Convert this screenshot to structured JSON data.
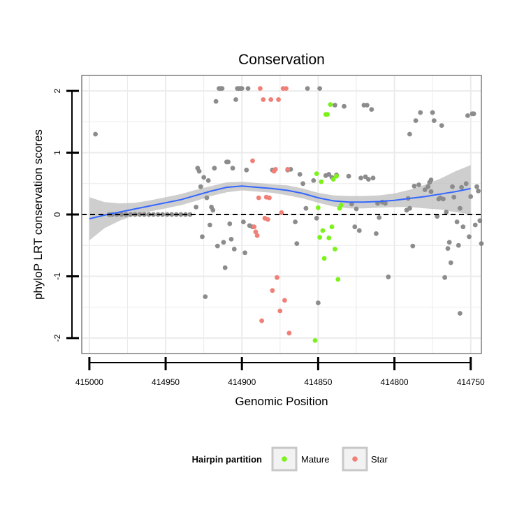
{
  "chart_data": {
    "type": "scatter",
    "title": "Conservation",
    "xlabel": "Genomic Position",
    "ylabel": "phyloP LRT conservation scores",
    "x_reversed": true,
    "xlim": [
      415005,
      414743
    ],
    "ylim": [
      -2.25,
      2.25
    ],
    "x_ticks": [
      415000,
      414950,
      414900,
      414850,
      414800,
      414750
    ],
    "x_tick_labels": [
      "415000",
      "414950",
      "414900",
      "414850",
      "414800",
      "414750"
    ],
    "y_ticks": [
      -2,
      -1,
      0,
      1,
      2
    ],
    "y_tick_labels": [
      "-2",
      "-1",
      "0",
      "1",
      "2"
    ],
    "reference_line": {
      "y": 0,
      "style": "dashed",
      "color": "#000000"
    },
    "legend": {
      "title": "Hairpin partition",
      "position": "bottom",
      "entries": [
        {
          "label": "Mature",
          "color": "#7CF21B"
        },
        {
          "label": "Star",
          "color": "#F08077"
        }
      ]
    },
    "colors": {
      "other": "#8C8C8C",
      "mature": "#7CF21B",
      "star": "#F08077",
      "smooth_line": "#3366FF",
      "confidence_band": "#BDBDBD",
      "panel_border": "#7F7F7F",
      "grid": "#EBEBEB"
    },
    "smooth": {
      "method": "loess",
      "x": [
        415000,
        414990,
        414980,
        414970,
        414960,
        414950,
        414940,
        414930,
        414920,
        414910,
        414900,
        414890,
        414880,
        414870,
        414860,
        414850,
        414840,
        414830,
        414820,
        414810,
        414800,
        414790,
        414780,
        414770,
        414760,
        414750
      ],
      "y": [
        -0.07,
        -0.01,
        0.04,
        0.09,
        0.14,
        0.19,
        0.24,
        0.31,
        0.38,
        0.44,
        0.46,
        0.44,
        0.42,
        0.39,
        0.34,
        0.27,
        0.22,
        0.2,
        0.2,
        0.21,
        0.23,
        0.26,
        0.29,
        0.33,
        0.37,
        0.42
      ],
      "lower": [
        -0.42,
        -0.22,
        -0.1,
        -0.01,
        0.05,
        0.1,
        0.15,
        0.22,
        0.3,
        0.36,
        0.39,
        0.37,
        0.35,
        0.31,
        0.26,
        0.19,
        0.13,
        0.1,
        0.1,
        0.11,
        0.12,
        0.12,
        0.1,
        0.08,
        0.04,
        0.0
      ],
      "upper": [
        0.28,
        0.2,
        0.18,
        0.19,
        0.23,
        0.28,
        0.33,
        0.4,
        0.46,
        0.52,
        0.53,
        0.51,
        0.49,
        0.47,
        0.42,
        0.35,
        0.31,
        0.3,
        0.3,
        0.31,
        0.34,
        0.4,
        0.48,
        0.58,
        0.7,
        0.8
      ]
    },
    "series": [
      {
        "name": "Other",
        "points": [
          [
            414996,
            1.3
          ],
          [
            414987,
            0
          ],
          [
            414985,
            0
          ],
          [
            414982,
            0
          ],
          [
            414979,
            0
          ],
          [
            414976,
            0
          ],
          [
            414973,
            0
          ],
          [
            414970,
            0
          ],
          [
            414967,
            0
          ],
          [
            414964,
            0
          ],
          [
            414961,
            0
          ],
          [
            414958,
            0
          ],
          [
            414955,
            0
          ],
          [
            414952,
            0
          ],
          [
            414949,
            0
          ],
          [
            414946,
            0
          ],
          [
            414943,
            0
          ],
          [
            414940,
            0
          ],
          [
            414937,
            0
          ],
          [
            414934,
            0
          ],
          [
            414930,
            0.12
          ],
          [
            414929,
            0.75
          ],
          [
            414928,
            0.7
          ],
          [
            414927,
            0.45
          ],
          [
            414926,
            -0.36
          ],
          [
            414925,
            0.6
          ],
          [
            414924,
            -1.33
          ],
          [
            414923,
            0.27
          ],
          [
            414922,
            0.55
          ],
          [
            414921,
            -0.17
          ],
          [
            414920,
            0.12
          ],
          [
            414919,
            0.07
          ],
          [
            414918,
            0.75
          ],
          [
            414917,
            1.83
          ],
          [
            414916,
            -0.51
          ],
          [
            414915,
            2.04
          ],
          [
            414914,
            2.04
          ],
          [
            414913,
            2.04
          ],
          [
            414912,
            -0.45
          ],
          [
            414911,
            -0.86
          ],
          [
            414910,
            0.85
          ],
          [
            414909,
            0.85
          ],
          [
            414908,
            -0.15
          ],
          [
            414907,
            -0.4
          ],
          [
            414906,
            0.75
          ],
          [
            414905,
            -0.56
          ],
          [
            414904,
            1.86
          ],
          [
            414903,
            2.04
          ],
          [
            414902,
            2.04
          ],
          [
            414901,
            2.04
          ],
          [
            414900,
            2.04
          ],
          [
            414899,
            -0.12
          ],
          [
            414898,
            -0.62
          ],
          [
            414897,
            0.72
          ],
          [
            414896,
            2.04
          ],
          [
            414895,
            -0.18
          ],
          [
            414893,
            -0.2
          ],
          [
            414880,
            0.72
          ],
          [
            414870,
            0.72
          ],
          [
            414868,
            0.73
          ],
          [
            414865,
            -0.12
          ],
          [
            414864,
            -0.47
          ],
          [
            414862,
            0.65
          ],
          [
            414860,
            0.5
          ],
          [
            414858,
            0.1
          ],
          [
            414857,
            2.04
          ],
          [
            414853,
            0.55
          ],
          [
            414851,
            -0.06
          ],
          [
            414850,
            -1.43
          ],
          [
            414849,
            2.04
          ],
          [
            414845,
            0.63
          ],
          [
            414843,
            0.65
          ],
          [
            414841,
            0.6
          ],
          [
            414839,
            1.77
          ],
          [
            414838,
            0.64
          ],
          [
            414833,
            1.75
          ],
          [
            414830,
            0.62
          ],
          [
            414828,
            0.17
          ],
          [
            414826,
            -0.2
          ],
          [
            414825,
            0.09
          ],
          [
            414823,
            -0.26
          ],
          [
            414822,
            0.59
          ],
          [
            414820,
            1.77
          ],
          [
            414819,
            0.61
          ],
          [
            414818,
            1.77
          ],
          [
            414817,
            0.57
          ],
          [
            414815,
            1.7
          ],
          [
            414814,
            0.59
          ],
          [
            414812,
            -0.31
          ],
          [
            414811,
            0.18
          ],
          [
            414810,
            -0.05
          ],
          [
            414808,
            0.2
          ],
          [
            414806,
            0.18
          ],
          [
            414804,
            -1.01
          ],
          [
            414792,
            0.07
          ],
          [
            414790,
            0.1
          ],
          [
            414788,
            -0.51
          ],
          [
            414787,
            0.46
          ],
          [
            414786,
            1.52
          ],
          [
            414784,
            0.48
          ],
          [
            414783,
            1.65
          ],
          [
            414780,
            0.4
          ],
          [
            414778,
            0.45
          ],
          [
            414777,
            0.52
          ],
          [
            414776,
            0.56
          ],
          [
            414775,
            1.65
          ],
          [
            414774,
            1.52
          ],
          [
            414771,
            0.25
          ],
          [
            414770,
            0.27
          ],
          [
            414769,
            1.44
          ],
          [
            414768,
            0.25
          ],
          [
            414767,
            -1.02
          ],
          [
            414766,
            0.04
          ],
          [
            414765,
            -0.55
          ],
          [
            414764,
            -0.45
          ],
          [
            414763,
            -0.78
          ],
          [
            414762,
            0.45
          ],
          [
            414761,
            0.28
          ],
          [
            414759,
            -0.12
          ],
          [
            414758,
            -0.5
          ],
          [
            414757,
            -1.6
          ],
          [
            414756,
            0.44
          ],
          [
            414755,
            -0.2
          ],
          [
            414753,
            0.5
          ],
          [
            414752,
            1.6
          ],
          [
            414751,
            -0.36
          ],
          [
            414750,
            0.29
          ],
          [
            414749,
            1.63
          ],
          [
            414748,
            1.63
          ],
          [
            414747,
            -0.17
          ],
          [
            414746,
            0.45
          ],
          [
            414745,
            0.38
          ],
          [
            414744,
            -0.1
          ],
          [
            414743,
            -0.47
          ],
          [
            414790,
            1.3
          ],
          [
            414776,
            0.37
          ],
          [
            414791,
            0.26
          ],
          [
            414772,
            -0.03
          ],
          [
            414757,
            0.1
          ]
        ]
      },
      {
        "name": "Mature",
        "points": [
          [
            414851,
            0.66
          ],
          [
            414850,
            0.11
          ],
          [
            414849,
            -0.37
          ],
          [
            414848,
            0.53
          ],
          [
            414847,
            -0.26
          ],
          [
            414846,
            -0.71
          ],
          [
            414845,
            1.62
          ],
          [
            414844,
            1.62
          ],
          [
            414843,
            -0.38
          ],
          [
            414842,
            1.78
          ],
          [
            414841,
            -0.2
          ],
          [
            414840,
            0.57
          ],
          [
            414839,
            -0.56
          ],
          [
            414838,
            0.62
          ],
          [
            414837,
            -1.05
          ],
          [
            414836,
            0.1
          ],
          [
            414835,
            0.15
          ],
          [
            414852,
            -2.04
          ]
        ]
      },
      {
        "name": "Star",
        "points": [
          [
            414893,
            0.87
          ],
          [
            414892,
            -0.2
          ],
          [
            414891,
            -0.28
          ],
          [
            414890,
            -0.34
          ],
          [
            414889,
            0.27
          ],
          [
            414888,
            2.04
          ],
          [
            414887,
            -1.72
          ],
          [
            414886,
            1.86
          ],
          [
            414885,
            -0.06
          ],
          [
            414884,
            0.28
          ],
          [
            414883,
            -0.08
          ],
          [
            414882,
            0.27
          ],
          [
            414881,
            1.86
          ],
          [
            414880,
            -1.23
          ],
          [
            414879,
            0.7
          ],
          [
            414878,
            0.73
          ],
          [
            414877,
            -1.02
          ],
          [
            414876,
            1.86
          ],
          [
            414875,
            -1.56
          ],
          [
            414874,
            0.03
          ],
          [
            414873,
            2.04
          ],
          [
            414872,
            -1.39
          ],
          [
            414871,
            2.04
          ],
          [
            414870,
            0.73
          ],
          [
            414869,
            -1.92
          ]
        ]
      }
    ]
  }
}
